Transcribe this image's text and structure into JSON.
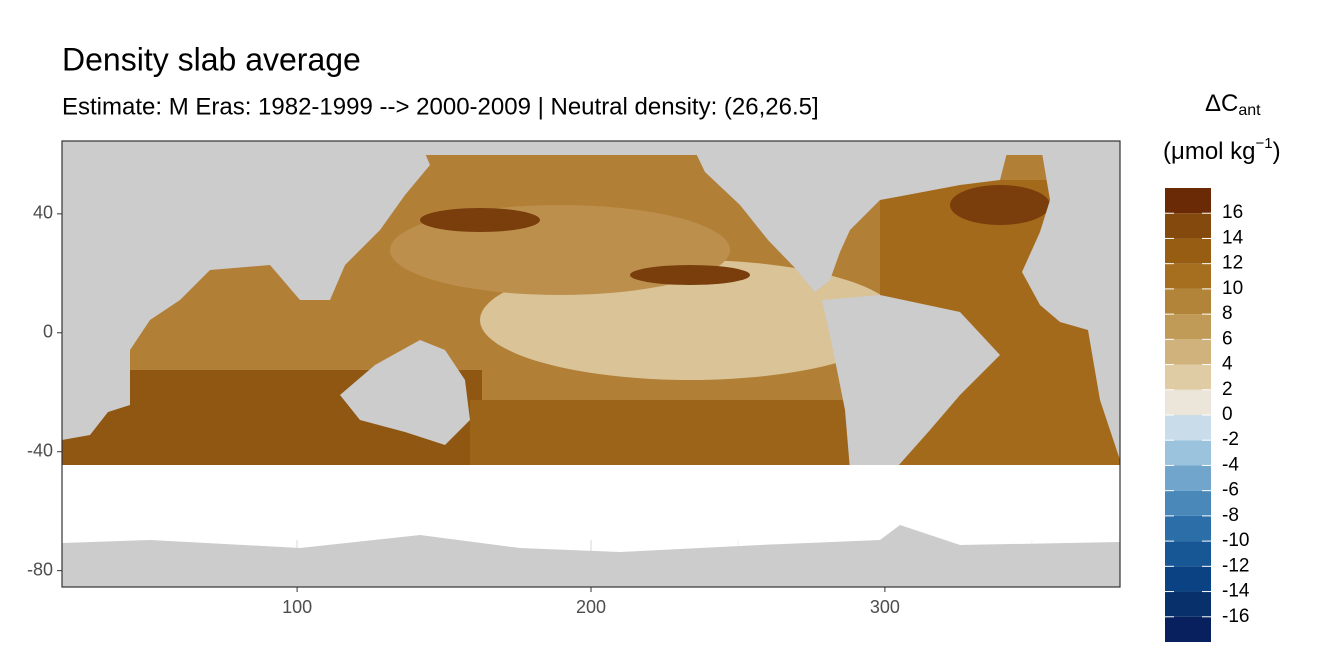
{
  "chart_data": {
    "type": "raster-map",
    "title": "Density slab average",
    "subtitle": "Estimate: M Eras: 1982-1999 --> 2000-2009 | Neutral density: (26,26.5]",
    "xlim": [
      20,
      380
    ],
    "xticks": [
      100,
      200,
      300
    ],
    "xminor": [
      150,
      250,
      350
    ],
    "ylim": [
      -85.5,
      64.5
    ],
    "yticks": [
      40,
      0,
      -40,
      -80
    ],
    "yminor": [
      20,
      -20,
      -60
    ],
    "grid": true,
    "legend": {
      "title": "ΔC",
      "title_sub": "ant",
      "unit": "(μmol kg",
      "unit_sup": "−1",
      "unit_end": ")",
      "limits": [
        -18,
        18
      ],
      "ticks": [
        16,
        14,
        12,
        10,
        8,
        6,
        4,
        2,
        0,
        -2,
        -4,
        -6,
        -8,
        -10,
        -12,
        -14,
        -16
      ],
      "colors": [
        "#08215e",
        "#08306b",
        "#0b4283",
        "#175795",
        "#2b6ea8",
        "#4a88ba",
        "#71a5cc",
        "#9cc3dd",
        "#c8dde9",
        "#ebe5da",
        "#dfcca5",
        "#cfb27c",
        "#c09a57",
        "#b2843a",
        "#a66f20",
        "#975d12",
        "#84490c",
        "#6a2a06"
      ]
    }
  }
}
